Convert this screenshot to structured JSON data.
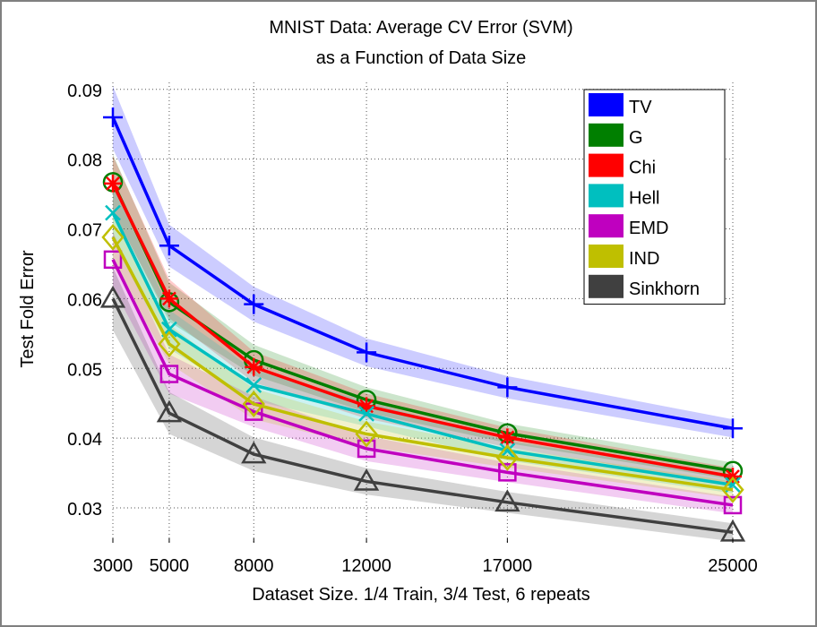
{
  "chart_data": {
    "type": "line",
    "title": [
      "MNIST Data: Average CV Error (SVM)",
      "as a Function of Data Size"
    ],
    "xlabel": "Dataset Size. 1/4 Train, 3/4 Test, 6 repeats",
    "ylabel": "Test Fold Error",
    "x": [
      3000,
      5000,
      8000,
      12000,
      17000,
      25000
    ],
    "xticks": [
      "3000",
      "5000",
      "8000",
      "12000",
      "17000",
      "25000"
    ],
    "yticks": [
      0.03,
      0.04,
      0.05,
      0.06,
      0.07,
      0.08,
      0.09
    ],
    "ytick_labels": [
      "0.03",
      "0.04",
      "0.05",
      "0.06",
      "0.07",
      "0.08",
      "0.09"
    ],
    "xlim": [
      3000,
      25000
    ],
    "ylim": [
      0.025,
      0.091
    ],
    "grid": true,
    "legend_position": "top-right",
    "series": [
      {
        "name": "TV",
        "color": "#0000ff",
        "marker": "plus",
        "values": [
          0.086,
          0.0676,
          0.0592,
          0.0523,
          0.0473,
          0.0414
        ],
        "band": [
          0.0045,
          0.003,
          0.0025,
          0.002,
          0.0016,
          0.0013
        ]
      },
      {
        "name": "G",
        "color": "#007f00",
        "marker": "circle",
        "values": [
          0.0767,
          0.0595,
          0.0512,
          0.0455,
          0.0407,
          0.0353
        ],
        "band": [
          0.004,
          0.0028,
          0.0022,
          0.0018,
          0.0014,
          0.0012
        ]
      },
      {
        "name": "Chi",
        "color": "#ff0000",
        "marker": "asterisk",
        "values": [
          0.0765,
          0.06,
          0.0502,
          0.0446,
          0.0401,
          0.0345
        ],
        "band": [
          0.004,
          0.0028,
          0.0022,
          0.0018,
          0.0014,
          0.0012
        ]
      },
      {
        "name": "Hell",
        "color": "#00bfbf",
        "marker": "x",
        "values": [
          0.0723,
          0.0556,
          0.0476,
          0.0435,
          0.0382,
          0.0333
        ],
        "band": [
          0.004,
          0.0028,
          0.0022,
          0.0018,
          0.0014,
          0.0012
        ]
      },
      {
        "name": "EMD",
        "color": "#bf00bf",
        "marker": "square",
        "values": [
          0.0656,
          0.0492,
          0.0438,
          0.0385,
          0.0351,
          0.0304
        ],
        "band": [
          0.004,
          0.0028,
          0.0022,
          0.0018,
          0.0014,
          0.0012
        ]
      },
      {
        "name": "IND",
        "color": "#bfbf00",
        "marker": "diamond",
        "values": [
          0.0688,
          0.0535,
          0.0449,
          0.0406,
          0.0372,
          0.0326
        ],
        "band": [
          0.004,
          0.0028,
          0.0022,
          0.0018,
          0.0014,
          0.0012
        ]
      },
      {
        "name": "Sinkhorn",
        "color": "#404040",
        "marker": "triangle",
        "values": [
          0.06,
          0.0436,
          0.0377,
          0.0338,
          0.0308,
          0.0265
        ],
        "band": [
          0.0045,
          0.003,
          0.0024,
          0.0019,
          0.0015,
          0.0013
        ]
      }
    ]
  }
}
